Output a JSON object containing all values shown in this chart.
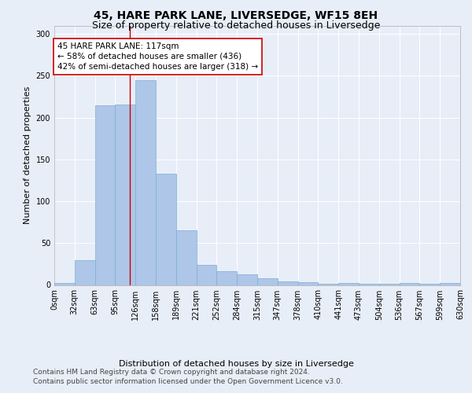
{
  "title": "45, HARE PARK LANE, LIVERSEDGE, WF15 8EH",
  "subtitle": "Size of property relative to detached houses in Liversedge",
  "xlabel": "Distribution of detached houses by size in Liversedge",
  "ylabel": "Number of detached properties",
  "bar_color": "#aec6e8",
  "bar_edge_color": "#7aafd4",
  "background_color": "#e8eef8",
  "grid_color": "#ffffff",
  "annotation_box_color": "#ffffff",
  "annotation_border_color": "#cc0000",
  "vline_color": "#cc0000",
  "bin_edges": [
    0,
    31.5,
    63,
    94.5,
    126,
    157.5,
    189,
    220.5,
    252,
    283.5,
    315,
    346.5,
    378,
    409.5,
    441,
    472.5,
    504,
    535.5,
    567,
    598.5,
    630
  ],
  "bin_labels": [
    "0sqm",
    "32sqm",
    "63sqm",
    "95sqm",
    "126sqm",
    "158sqm",
    "189sqm",
    "221sqm",
    "252sqm",
    "284sqm",
    "315sqm",
    "347sqm",
    "378sqm",
    "410sqm",
    "441sqm",
    "473sqm",
    "504sqm",
    "536sqm",
    "567sqm",
    "599sqm",
    "630sqm"
  ],
  "bar_heights": [
    2,
    30,
    215,
    216,
    245,
    133,
    65,
    24,
    16,
    13,
    8,
    4,
    3,
    1,
    2,
    1,
    1,
    2,
    1,
    2
  ],
  "vline_x": 117,
  "annotation_line1": "45 HARE PARK LANE: 117sqm",
  "annotation_line2": "← 58% of detached houses are smaller (436)",
  "annotation_line3": "42% of semi-detached houses are larger (318) →",
  "ylim": [
    0,
    310
  ],
  "yticks": [
    0,
    50,
    100,
    150,
    200,
    250,
    300
  ],
  "footer_line1": "Contains HM Land Registry data © Crown copyright and database right 2024.",
  "footer_line2": "Contains public sector information licensed under the Open Government Licence v3.0.",
  "title_fontsize": 10,
  "subtitle_fontsize": 9,
  "axis_label_fontsize": 8,
  "tick_fontsize": 7,
  "annotation_fontsize": 7.5,
  "footer_fontsize": 6.5
}
